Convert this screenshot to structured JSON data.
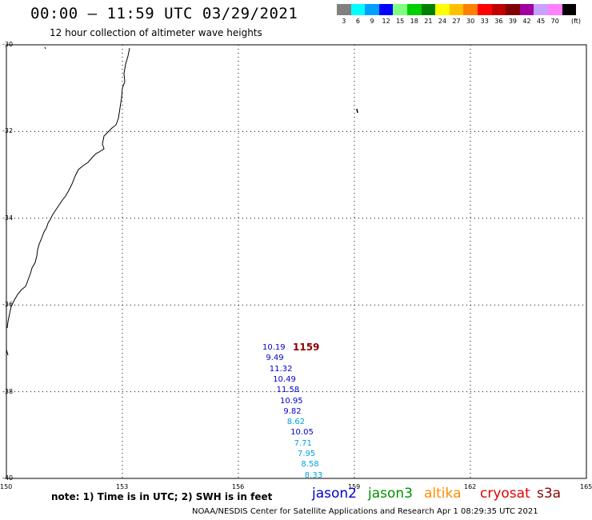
{
  "header": {
    "title": "00:00 – 11:59 UTC 03/29/2021",
    "subtitle": "12 hour collection of altimeter wave heights"
  },
  "color_scale": {
    "unit": "(ft)",
    "bins": [
      {
        "label": "3",
        "color": "#808080"
      },
      {
        "label": "6",
        "color": "#00ffff"
      },
      {
        "label": "9",
        "color": "#00a0ff"
      },
      {
        "label": "12",
        "color": "#0000ff"
      },
      {
        "label": "15",
        "color": "#80ff80"
      },
      {
        "label": "18",
        "color": "#00d000"
      },
      {
        "label": "21",
        "color": "#008000"
      },
      {
        "label": "24",
        "color": "#ffff00"
      },
      {
        "label": "27",
        "color": "#ffc000"
      },
      {
        "label": "30",
        "color": "#ff8000"
      },
      {
        "label": "33",
        "color": "#ff0000"
      },
      {
        "label": "36",
        "color": "#c00000"
      },
      {
        "label": "39",
        "color": "#800000"
      },
      {
        "label": "42",
        "color": "#a000a0"
      },
      {
        "label": "45",
        "color": "#c8a0ff"
      },
      {
        "label": "70",
        "color": "#ff80ff"
      },
      {
        "label": "",
        "color": "#000000"
      }
    ]
  },
  "map": {
    "lat_labels": [
      "-30",
      "-32",
      "-34",
      "-36",
      "-38",
      "-40"
    ],
    "lon_labels": [
      "150",
      "153",
      "156",
      "159",
      "162",
      "165"
    ],
    "lat_range": [
      -40,
      -30
    ],
    "lon_range": [
      150,
      165
    ]
  },
  "track": {
    "time_label": "1159",
    "points": [
      {
        "value": "10.19",
        "color": "#0000cd"
      },
      {
        "value": "9.49",
        "color": "#0000cd"
      },
      {
        "value": "11.32",
        "color": "#0000cd"
      },
      {
        "value": "10.49",
        "color": "#0000cd"
      },
      {
        "value": "11.58",
        "color": "#0000cd"
      },
      {
        "value": "10.95",
        "color": "#0000cd"
      },
      {
        "value": "9.82",
        "color": "#0000cd"
      },
      {
        "value": "8.62",
        "color": "#00a0e0"
      },
      {
        "value": "10.05",
        "color": "#0000cd"
      },
      {
        "value": "7.71",
        "color": "#00a0e0"
      },
      {
        "value": "7.95",
        "color": "#00a0e0"
      },
      {
        "value": "8.58",
        "color": "#00a0e0"
      },
      {
        "value": "8.33",
        "color": "#00a0e0"
      }
    ]
  },
  "note": "note: 1) Time is in UTC; 2) SWH is in feet",
  "satellites": [
    {
      "name": "jason2",
      "color": "#0000cd"
    },
    {
      "name": "jason3",
      "color": "#009000"
    },
    {
      "name": "altika",
      "color": "#ff8c00"
    },
    {
      "name": "cryosat",
      "color": "#e00000"
    },
    {
      "name": "s3a",
      "color": "#8b0000"
    }
  ],
  "footer": "NOAA/NESDIS Center for Satellite Applications and Research    Apr  1 08:29:35 UTC 2021"
}
